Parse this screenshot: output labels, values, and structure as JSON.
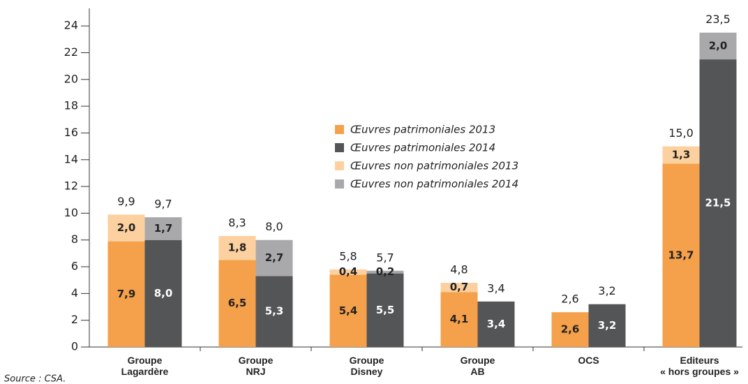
{
  "chart_data": {
    "type": "stacked_grouped_bar",
    "source": "Source : CSA.",
    "categories": [
      "Groupe\nLagardère",
      "Groupe\nNRJ",
      "Groupe\nDisney",
      "Groupe\nAB",
      "OCS",
      "Editeurs\n« hors groupes »"
    ],
    "ylim": [
      0,
      25
    ],
    "yticks": [
      0,
      2,
      4,
      6,
      8,
      10,
      12,
      14,
      16,
      18,
      20,
      22,
      24
    ],
    "series": [
      {
        "name": "Œuvres patrimoniales 2013",
        "color": "#f5a04a",
        "stack": 0,
        "label_color": "#222",
        "values": [
          7.9,
          6.5,
          5.4,
          4.1,
          2.6,
          13.7
        ],
        "value_labels": [
          "7,9",
          "6,5",
          "5,4",
          "4,1",
          "2,6",
          "13,7"
        ]
      },
      {
        "name": "Œuvres patrimoniales 2014",
        "color": "#545557",
        "stack": 1,
        "label_color": "#ffffff",
        "values": [
          8.0,
          5.3,
          5.5,
          3.4,
          3.2,
          21.5
        ],
        "value_labels": [
          "8,0",
          "5,3",
          "5,5",
          "3,4",
          "3,2",
          "21,5"
        ]
      },
      {
        "name": "Œuvres non patrimoniales 2013",
        "color": "#fdd19f",
        "stack": 0,
        "label_color": "#222",
        "values": [
          2.0,
          1.8,
          0.4,
          0.7,
          null,
          1.3
        ],
        "value_labels": [
          "2,0",
          "1,8",
          "0,4",
          "0,7",
          null,
          "1,3"
        ]
      },
      {
        "name": "Œuvres non patrimoniales 2014",
        "color": "#a9a9ab",
        "stack": 1,
        "label_color": "#222",
        "values": [
          1.7,
          2.7,
          0.2,
          null,
          null,
          2.0
        ],
        "value_labels": [
          "1,7",
          "2,7",
          "0,2",
          null,
          null,
          "2,0"
        ]
      }
    ],
    "totals": [
      {
        "values": [
          9.9,
          8.3,
          5.8,
          4.8,
          2.6,
          15.0
        ],
        "value_labels": [
          "9,9",
          "8,3",
          "5,8",
          "4,8",
          "2,6",
          "15,0"
        ]
      },
      {
        "values": [
          9.7,
          8.0,
          5.7,
          3.4,
          3.2,
          23.5
        ],
        "value_labels": [
          "9,7",
          "8,0",
          "5,7",
          "3,4",
          "3,2",
          "23,5"
        ]
      }
    ],
    "legend": "center"
  }
}
